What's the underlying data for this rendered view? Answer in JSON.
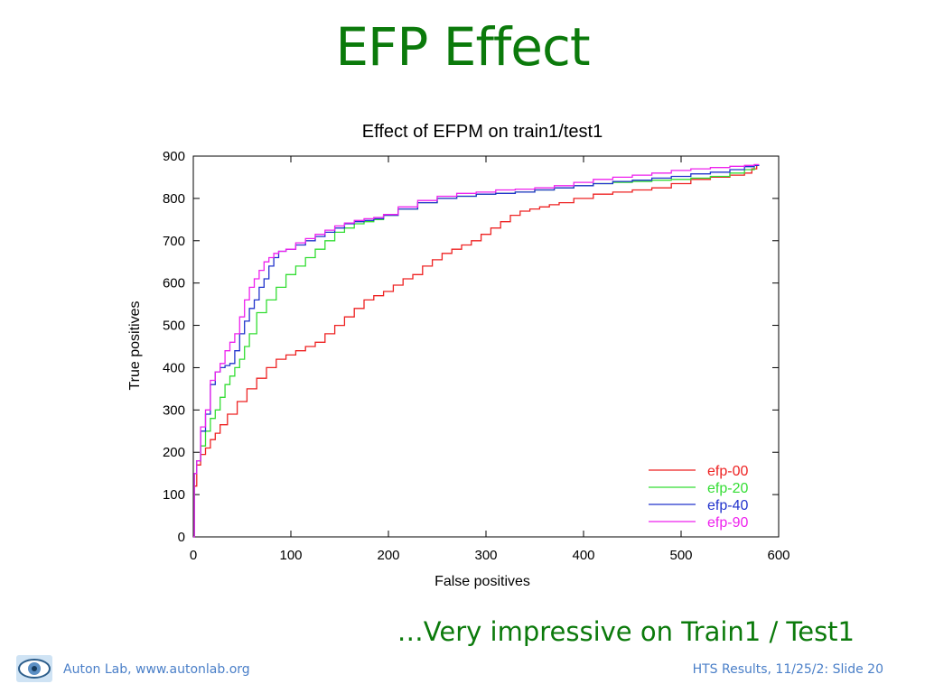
{
  "slide": {
    "title": "EFP Effect",
    "caption": "…Very impressive on Train1 / Test1",
    "footer_left": "Auton Lab, www.autonlab.org",
    "footer_right": "HTS Results, 11/25/2: Slide 20",
    "logo_icon": "eye-logo-icon",
    "title_color": "#0b7a0b",
    "footer_color": "#4a7fc8"
  },
  "chart_data": {
    "type": "line",
    "title": "Effect of EFPM on train1/test1",
    "xlabel": "False positives",
    "ylabel": "True positives",
    "xlim": [
      0,
      600
    ],
    "ylim": [
      0,
      900
    ],
    "xticks": [
      0,
      100,
      200,
      300,
      400,
      500,
      600
    ],
    "yticks": [
      0,
      100,
      200,
      300,
      400,
      500,
      600,
      700,
      800,
      900
    ],
    "grid": false,
    "legend_position": "bottom-right",
    "series": [
      {
        "name": "efp-00",
        "color": "#ee2222",
        "x": [
          0,
          2,
          5,
          10,
          15,
          20,
          25,
          30,
          40,
          50,
          60,
          70,
          80,
          90,
          100,
          110,
          120,
          130,
          140,
          150,
          160,
          170,
          180,
          190,
          200,
          210,
          220,
          230,
          240,
          250,
          260,
          270,
          280,
          290,
          300,
          310,
          320,
          330,
          340,
          350,
          360,
          370,
          380,
          400,
          420,
          440,
          460,
          480,
          500,
          520,
          540,
          560,
          570,
          575,
          580
        ],
        "y": [
          0,
          120,
          170,
          195,
          210,
          230,
          245,
          265,
          290,
          320,
          350,
          375,
          400,
          420,
          430,
          440,
          450,
          460,
          480,
          500,
          520,
          540,
          560,
          570,
          580,
          595,
          610,
          620,
          640,
          655,
          670,
          680,
          690,
          700,
          715,
          730,
          745,
          760,
          770,
          775,
          780,
          785,
          790,
          800,
          810,
          815,
          820,
          825,
          835,
          845,
          850,
          855,
          860,
          870,
          878
        ]
      },
      {
        "name": "efp-20",
        "color": "#33dd33",
        "x": [
          0,
          2,
          5,
          10,
          15,
          20,
          25,
          30,
          35,
          40,
          45,
          50,
          55,
          60,
          70,
          80,
          90,
          100,
          110,
          120,
          130,
          140,
          150,
          160,
          170,
          180,
          190,
          200,
          220,
          240,
          260,
          280,
          300,
          320,
          340,
          360,
          380,
          400,
          420,
          440,
          460,
          480,
          500,
          520,
          540,
          560,
          570,
          580
        ],
        "y": [
          0,
          150,
          180,
          215,
          250,
          280,
          300,
          330,
          360,
          380,
          400,
          420,
          450,
          480,
          530,
          560,
          590,
          620,
          640,
          660,
          680,
          700,
          720,
          730,
          740,
          745,
          750,
          760,
          775,
          790,
          800,
          805,
          810,
          812,
          815,
          820,
          825,
          830,
          835,
          838,
          840,
          843,
          845,
          848,
          852,
          860,
          868,
          878
        ]
      },
      {
        "name": "efp-40",
        "color": "#2233cc",
        "x": [
          0,
          2,
          5,
          10,
          15,
          20,
          25,
          30,
          35,
          40,
          45,
          50,
          55,
          60,
          65,
          70,
          75,
          80,
          85,
          90,
          100,
          110,
          120,
          130,
          140,
          150,
          160,
          170,
          180,
          190,
          200,
          220,
          240,
          260,
          280,
          300,
          320,
          340,
          360,
          380,
          400,
          420,
          440,
          460,
          480,
          500,
          520,
          540,
          560,
          570,
          580
        ],
        "y": [
          0,
          150,
          180,
          250,
          290,
          360,
          390,
          400,
          405,
          410,
          440,
          480,
          510,
          540,
          560,
          590,
          610,
          640,
          660,
          675,
          680,
          690,
          700,
          710,
          720,
          730,
          740,
          745,
          748,
          752,
          760,
          775,
          790,
          800,
          805,
          810,
          812,
          815,
          820,
          825,
          830,
          835,
          840,
          843,
          848,
          852,
          858,
          862,
          868,
          875,
          878
        ]
      },
      {
        "name": "efp-90",
        "color": "#ee22ee",
        "x": [
          0,
          2,
          5,
          10,
          15,
          20,
          25,
          30,
          35,
          40,
          45,
          50,
          55,
          60,
          65,
          70,
          75,
          80,
          85,
          90,
          100,
          110,
          120,
          130,
          140,
          150,
          160,
          170,
          180,
          190,
          200,
          220,
          240,
          260,
          280,
          300,
          320,
          340,
          360,
          380,
          400,
          420,
          440,
          460,
          480,
          500,
          520,
          540,
          560,
          570,
          580
        ],
        "y": [
          0,
          150,
          180,
          260,
          300,
          370,
          390,
          410,
          440,
          460,
          480,
          520,
          560,
          590,
          610,
          630,
          650,
          660,
          670,
          675,
          680,
          695,
          705,
          715,
          725,
          735,
          742,
          748,
          752,
          755,
          762,
          780,
          795,
          805,
          812,
          815,
          820,
          822,
          825,
          830,
          838,
          845,
          850,
          855,
          860,
          866,
          870,
          873,
          876,
          878,
          880
        ]
      }
    ]
  }
}
